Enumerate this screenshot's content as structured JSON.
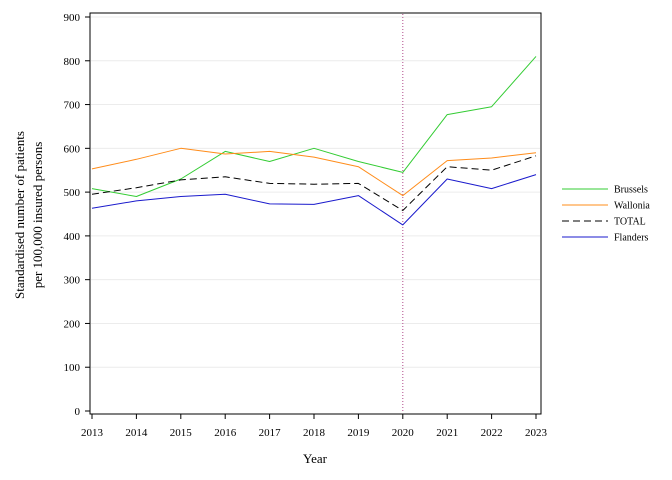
{
  "chart_data": {
    "type": "line",
    "title": "",
    "xlabel": "Year",
    "ylabel_lines": [
      "Standardised number of patients",
      "per 100,000 insured persons"
    ],
    "x": [
      2013,
      2014,
      2015,
      2016,
      2017,
      2018,
      2019,
      2020,
      2021,
      2022,
      2023
    ],
    "xlim": [
      2013,
      2023
    ],
    "ylim": [
      0,
      900
    ],
    "yticks": [
      0,
      100,
      200,
      300,
      400,
      500,
      600,
      700,
      800,
      900
    ],
    "grid": "horizontal",
    "legend_position": "right",
    "vertical_reference_line": 2020,
    "series": [
      {
        "name": "Brussels",
        "color": "#33cc33",
        "dash": "solid",
        "values": [
          508,
          490,
          530,
          593,
          570,
          600,
          570,
          545,
          677,
          695,
          810
        ]
      },
      {
        "name": "Wallonia",
        "color": "#ff8c1a",
        "dash": "solid",
        "values": [
          553,
          575,
          600,
          587,
          593,
          580,
          558,
          492,
          572,
          578,
          590
        ]
      },
      {
        "name": "TOTAL",
        "color": "#000000",
        "dash": "dashed",
        "values": [
          495,
          510,
          528,
          535,
          520,
          518,
          520,
          458,
          558,
          550,
          583
        ]
      },
      {
        "name": "Flanders",
        "color": "#1a1acc",
        "dash": "solid",
        "values": [
          463,
          480,
          490,
          495,
          473,
          472,
          492,
          425,
          530,
          508,
          540
        ]
      }
    ]
  }
}
